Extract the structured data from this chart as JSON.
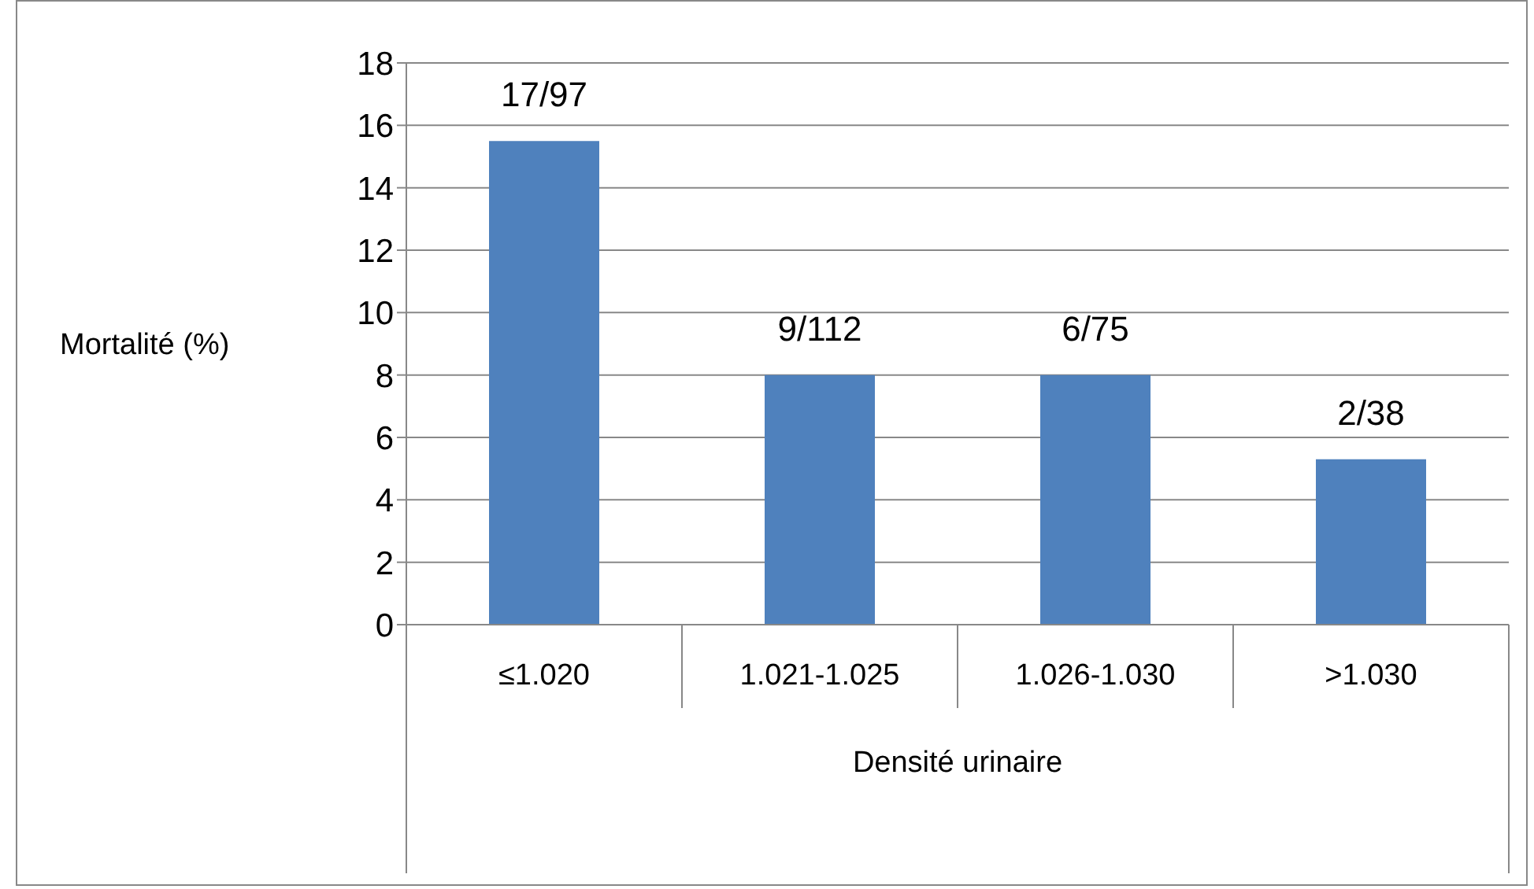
{
  "chart_data": {
    "type": "bar",
    "categories": [
      "≤1.020",
      "1.021-1.025",
      "1.026-1.030",
      ">1.030"
    ],
    "values": [
      15.5,
      8.0,
      8.0,
      5.3
    ],
    "value_labels": [
      "17/97",
      "9/112",
      "6/75",
      "2/38"
    ],
    "color": "#4f81bd",
    "xlabel": "Densité urinaire",
    "ylabel": "Mortalité (%)",
    "ylim": [
      0,
      18
    ],
    "yticks": [
      0,
      2,
      4,
      6,
      8,
      10,
      12,
      14,
      16,
      18
    ],
    "grid": "y"
  }
}
